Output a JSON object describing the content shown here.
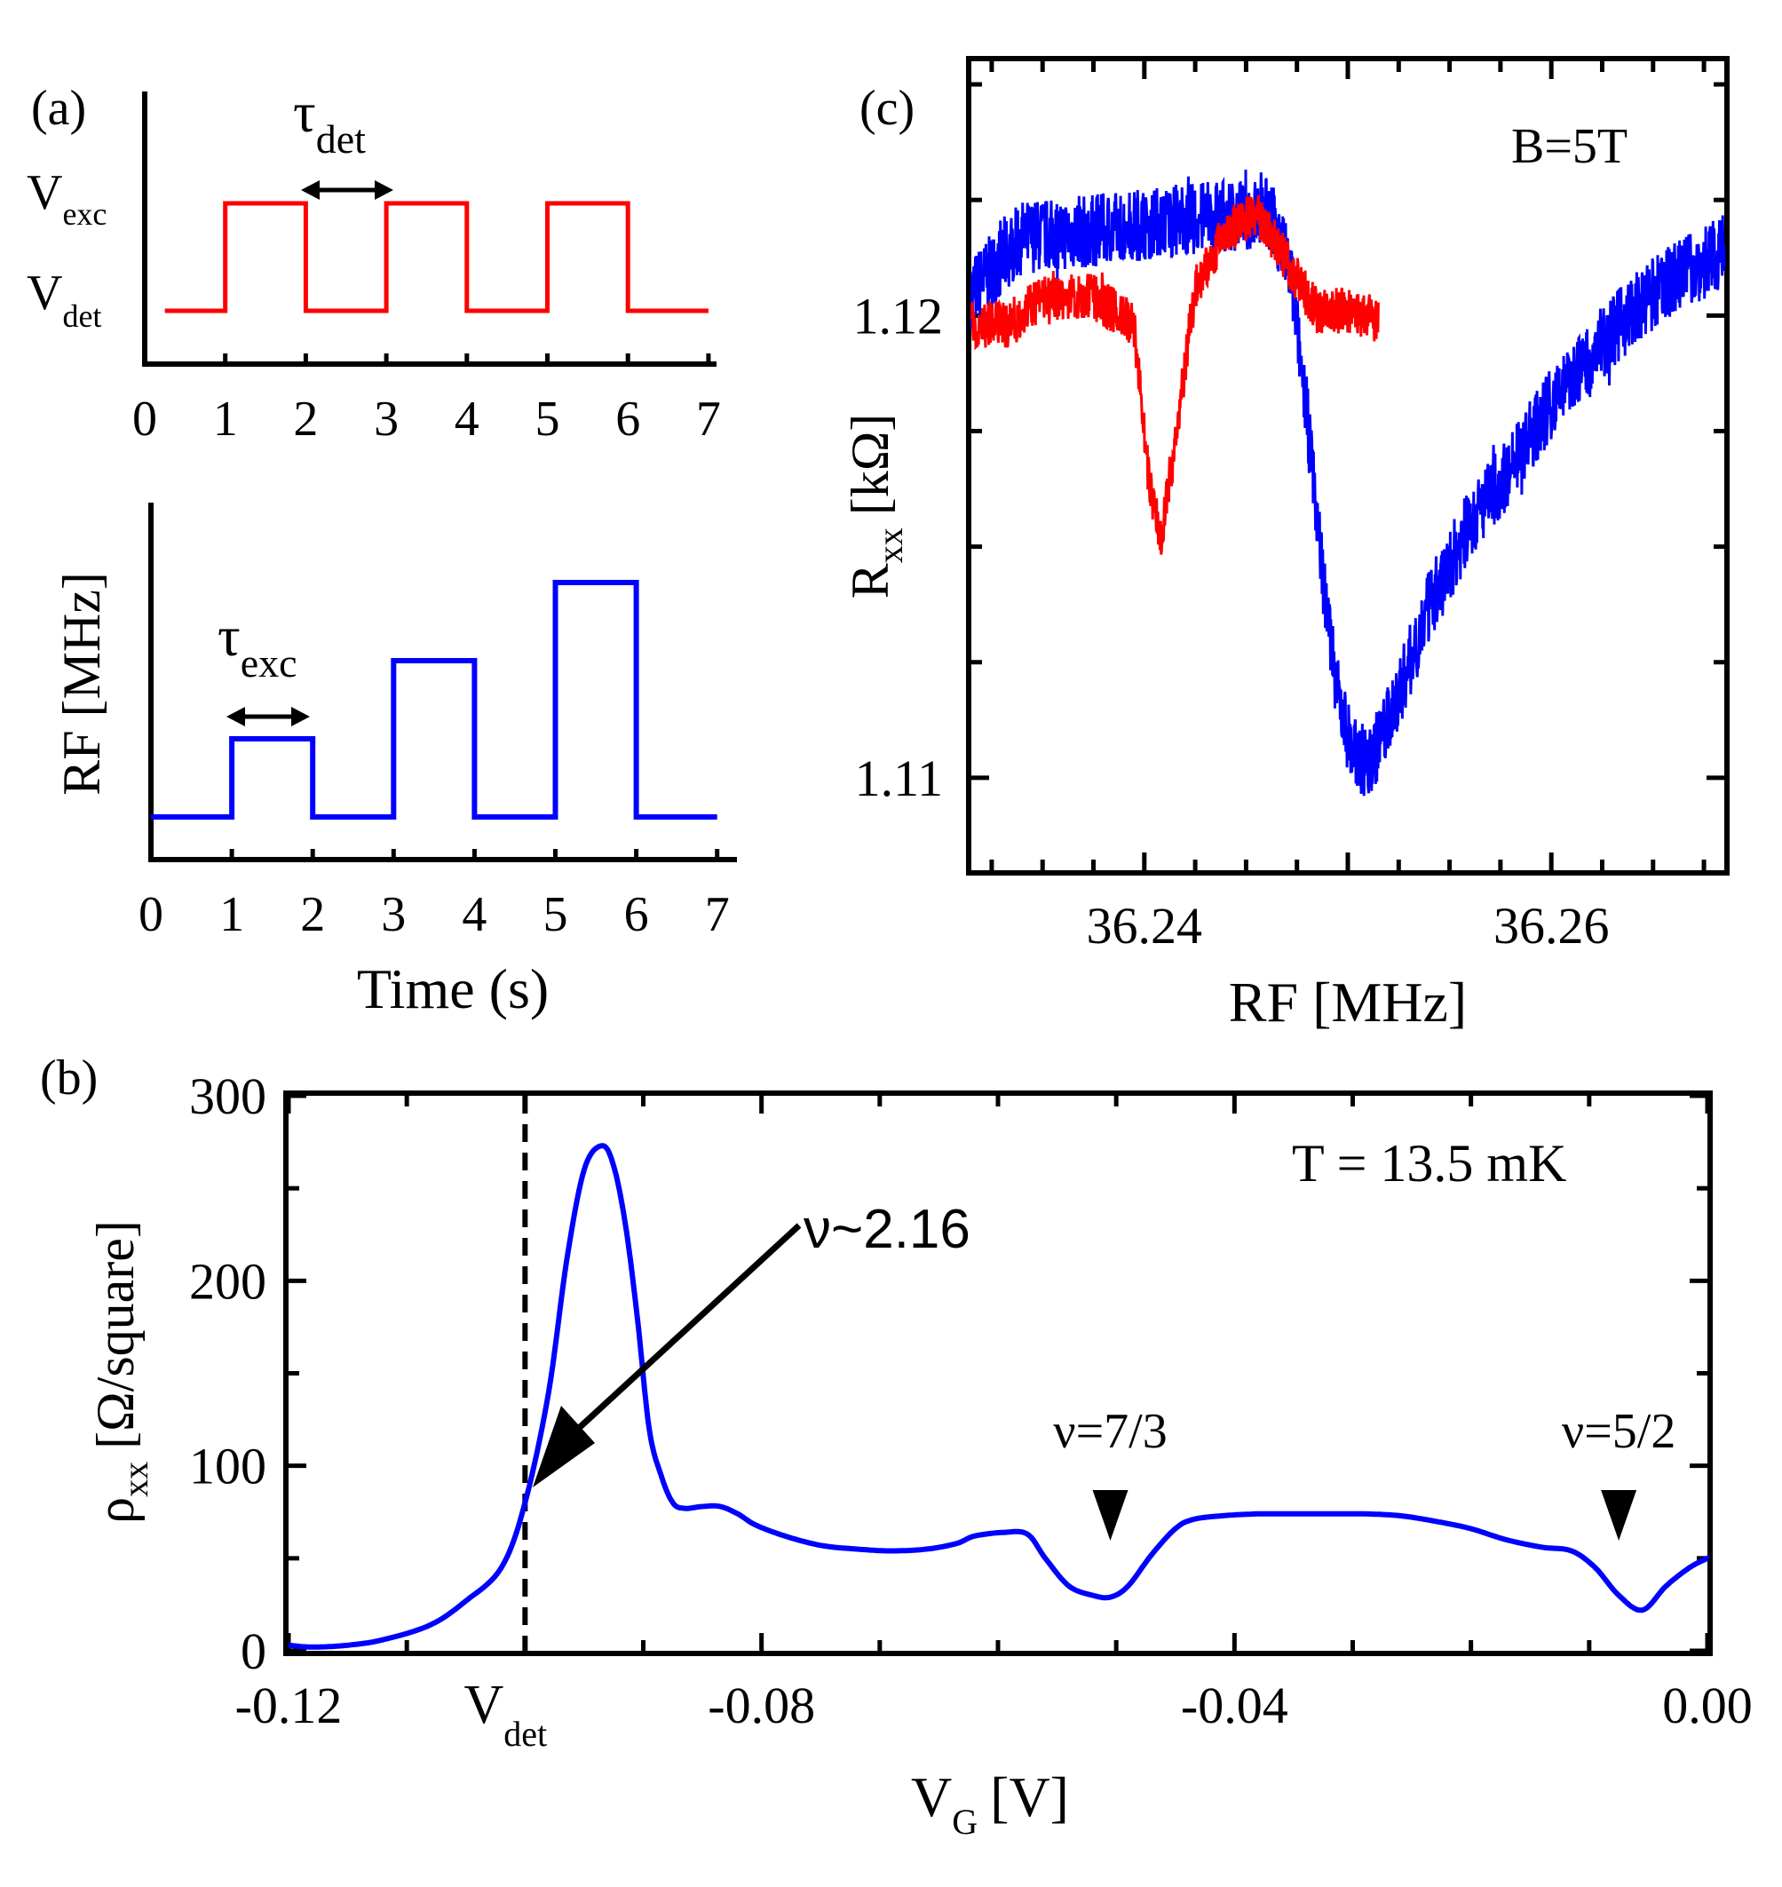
{
  "chart_data": [
    {
      "panel": "(a)",
      "type": "line",
      "title": "",
      "xlabel": "",
      "ylabel": "",
      "xlim": [
        0,
        7
      ],
      "x_ticks": [
        "0",
        "1",
        "2",
        "3",
        "4",
        "5",
        "6",
        "7"
      ],
      "level_labels": {
        "high_main": "V",
        "high_sub": "exc",
        "low_main": "V",
        "low_sub": "det"
      },
      "annotation": {
        "main": "τ",
        "sub": "det"
      },
      "color": "#ff0000",
      "levels": {
        "low": 0,
        "high": 1
      },
      "segments": [
        {
          "x0": 1,
          "x1": 2,
          "level": "high"
        },
        {
          "x0": 3,
          "x1": 4,
          "level": "high"
        },
        {
          "x0": 5,
          "x1": 6,
          "level": "high"
        }
      ],
      "x_range": [
        0.25,
        7
      ]
    },
    {
      "panel": "",
      "type": "line",
      "xlabel": "Time (s)",
      "ylabel": "RF [MHz]",
      "xlim": [
        0,
        7
      ],
      "x_ticks": [
        "0",
        "1",
        "2",
        "3",
        "4",
        "5",
        "6",
        "7"
      ],
      "annotation": {
        "main": "τ",
        "sub": "exc"
      },
      "color": "#0000ff",
      "base_level": 0,
      "pulses": [
        {
          "x0": 1,
          "x1": 2,
          "level": 1
        },
        {
          "x0": 3,
          "x1": 4,
          "level": 2
        },
        {
          "x0": 5,
          "x1": 6,
          "level": 3
        }
      ],
      "x_range": [
        0,
        7
      ]
    },
    {
      "panel": "(c)",
      "type": "line",
      "xlabel": "RF [MHz]",
      "ylabel_main": "R",
      "ylabel_sub": "xx",
      "ylabel_unit": "[kΩ]",
      "annotation": "B=5T",
      "xlim": [
        36.2315,
        36.2685
      ],
      "ylim": [
        1.108,
        1.1255
      ],
      "x_ticks": [
        "36.24",
        "36.26"
      ],
      "x_tick_values": [
        36.24,
        36.26
      ],
      "y_ticks": [
        "1.11",
        "1.12"
      ],
      "y_tick_values": [
        1.11,
        1.12
      ],
      "series": [
        {
          "name": "blue",
          "color": "#0000ff",
          "x": [
            36.2315,
            36.234,
            36.237,
            36.24,
            36.243,
            36.245,
            36.2462,
            36.2472,
            36.248,
            36.2488,
            36.2495,
            36.2502,
            36.251,
            36.252,
            36.254,
            36.256,
            36.258,
            36.26,
            36.262,
            36.264,
            36.266,
            36.2685
          ],
          "y": [
            1.1205,
            1.1217,
            1.1218,
            1.122,
            1.1221,
            1.1222,
            1.1222,
            1.1209,
            1.1178,
            1.1143,
            1.1118,
            1.1106,
            1.1103,
            1.1112,
            1.1137,
            1.1155,
            1.1167,
            1.1181,
            1.1192,
            1.1201,
            1.1208,
            1.1214
          ],
          "noise": 0.0008
        },
        {
          "name": "red",
          "color": "#ff0000",
          "x": [
            36.2315,
            36.2333,
            36.235,
            36.2375,
            36.2395,
            36.2402,
            36.2408,
            36.2415,
            36.2425,
            36.244,
            36.2455,
            36.2468,
            36.2485,
            36.25,
            36.2515
          ],
          "y": [
            1.1198,
            1.1198,
            1.1204,
            1.1204,
            1.1198,
            1.1165,
            1.1152,
            1.1172,
            1.1206,
            1.1218,
            1.1222,
            1.1213,
            1.1201,
            1.1201,
            1.1199
          ],
          "noise": 0.0005
        }
      ]
    },
    {
      "panel": "(b)",
      "type": "line",
      "xlabel_main": "V",
      "xlabel_sub": "G",
      "xlabel_unit": "[V]",
      "ylabel_main": "ρ",
      "ylabel_sub": "xx",
      "ylabel_unit": "[Ω/square]",
      "xlim": [
        -0.12,
        0.0
      ],
      "ylim": [
        0,
        300
      ],
      "x_ticks": [
        "-0.12",
        "-0.08",
        "-0.04",
        "0.00"
      ],
      "x_tick_values": [
        -0.12,
        -0.08,
        -0.04,
        0.0
      ],
      "vdet_label": {
        "main": "V",
        "sub": "det",
        "x": -0.1
      },
      "y_ticks": [
        "0",
        "100",
        "200",
        "300"
      ],
      "y_tick_values": [
        0,
        100,
        200,
        300
      ],
      "annotation_temp": "T = 13.5 mK",
      "annotation_nu": "ν~2.16",
      "markers": [
        {
          "label": "ν=7/3",
          "x": -0.0505
        },
        {
          "label": "ν=5/2",
          "x": -0.0075
        }
      ],
      "series": [
        {
          "name": "rho_xx",
          "color": "#0000ff",
          "x": [
            -0.12,
            -0.118,
            -0.115,
            -0.112,
            -0.108,
            -0.105,
            -0.102,
            -0.1,
            -0.098,
            -0.0965,
            -0.095,
            -0.0935,
            -0.0925,
            -0.0915,
            -0.0905,
            -0.0895,
            -0.0885,
            -0.0875,
            -0.0865,
            -0.085,
            -0.0835,
            -0.082,
            -0.0805,
            -0.078,
            -0.075,
            -0.072,
            -0.069,
            -0.066,
            -0.0635,
            -0.062,
            -0.0595,
            -0.0575,
            -0.056,
            -0.054,
            -0.052,
            -0.0505,
            -0.049,
            -0.047,
            -0.045,
            -0.0435,
            -0.041,
            -0.038,
            -0.035,
            -0.032,
            -0.029,
            -0.026,
            -0.023,
            -0.02,
            -0.017,
            -0.014,
            -0.0115,
            -0.0095,
            -0.0075,
            -0.0055,
            -0.0035,
            -0.0015,
            0.0
          ],
          "y": [
            3,
            2,
            3,
            6,
            14,
            27,
            45,
            80,
            140,
            210,
            260,
            273,
            262,
            230,
            180,
            120,
            95,
            80,
            77,
            78,
            78,
            74,
            68,
            62,
            57,
            55,
            54,
            55,
            58,
            62,
            64,
            63,
            50,
            35,
            30,
            29,
            35,
            52,
            66,
            71,
            73,
            74,
            74,
            74,
            74,
            73,
            70,
            66,
            60,
            56,
            54,
            45,
            30,
            22,
            35,
            45,
            50
          ]
        }
      ]
    }
  ]
}
